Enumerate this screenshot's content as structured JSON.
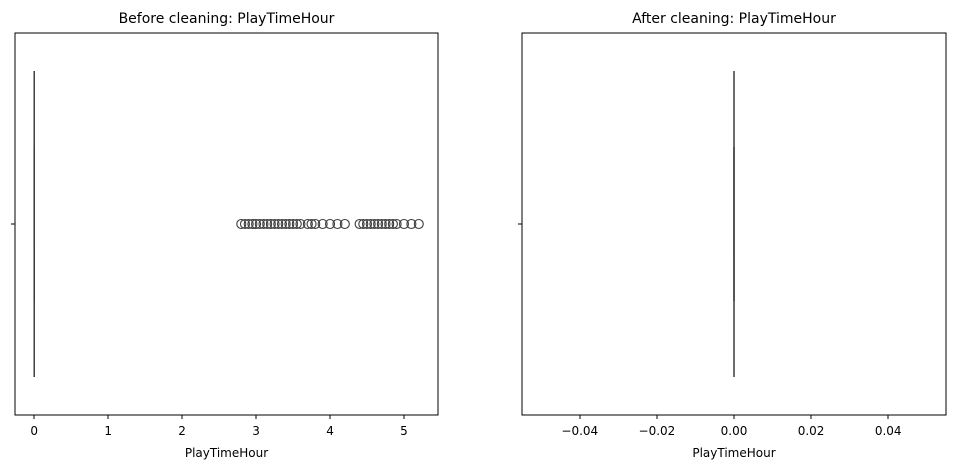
{
  "chart_data": [
    {
      "type": "box",
      "title": "Before cleaning: PlayTimeHour",
      "xlabel": "PlayTimeHour",
      "ylabel": "",
      "xlim": [
        -0.26,
        5.46
      ],
      "xticks": [
        0,
        1,
        2,
        3,
        4,
        5
      ],
      "xtick_labels": [
        "0",
        "1",
        "2",
        "3",
        "4",
        "5"
      ],
      "grid": false,
      "box": {
        "min": 0,
        "q1": 0,
        "median": 0,
        "q3": 0,
        "max": 0
      },
      "outliers": [
        2.8,
        2.85,
        2.9,
        2.95,
        3.0,
        3.05,
        3.1,
        3.15,
        3.2,
        3.25,
        3.3,
        3.35,
        3.4,
        3.45,
        3.5,
        3.55,
        3.6,
        3.7,
        3.75,
        3.8,
        3.9,
        4.0,
        4.1,
        4.2,
        4.4,
        4.45,
        4.5,
        4.55,
        4.6,
        4.65,
        4.7,
        4.75,
        4.8,
        4.85,
        4.9,
        5.0,
        5.1,
        5.2
      ]
    },
    {
      "type": "box",
      "title": "After cleaning: PlayTimeHour",
      "xlabel": "PlayTimeHour",
      "ylabel": "",
      "xlim": [
        -0.055,
        0.055
      ],
      "xticks": [
        -0.04,
        -0.02,
        0.0,
        0.02,
        0.04
      ],
      "xtick_labels": [
        "−0.04",
        "−0.02",
        "0.00",
        "0.02",
        "0.04"
      ],
      "grid": false,
      "box": {
        "min": 0,
        "q1": 0,
        "median": 0,
        "q3": 0,
        "max": 0
      },
      "outliers": []
    }
  ]
}
